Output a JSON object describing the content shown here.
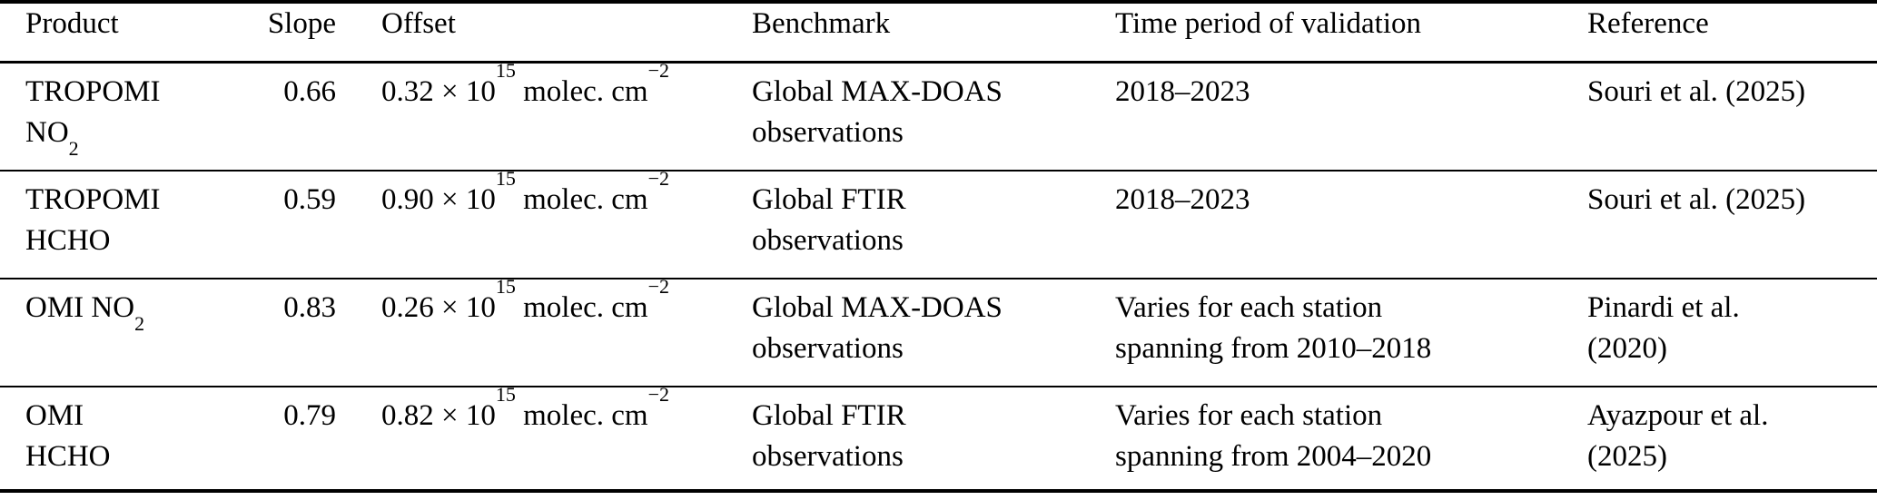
{
  "table": {
    "columns": [
      "Product",
      "Slope",
      "Offset",
      "Benchmark",
      "Time period of validation",
      "Reference"
    ],
    "rows": [
      {
        "product_line1": "TROPOMI",
        "product_line2": "NO",
        "product_line2_sub": "2",
        "slope": "0.66",
        "offset_value": "0.32 × 10",
        "offset_exponent": "15",
        "offset_unit": " molec. cm",
        "offset_unit_exponent": "−2",
        "benchmark_line1": "Global MAX-DOAS",
        "benchmark_line2": "observations",
        "time_line1": "2018–2023",
        "reference_line1": "Souri et al. (2025)"
      },
      {
        "product_line1": "TROPOMI",
        "product_line2": "HCHO",
        "slope": "0.59",
        "offset_value": "0.90 × 10",
        "offset_exponent": "15",
        "offset_unit": " molec. cm",
        "offset_unit_exponent": "−2",
        "benchmark_line1": "Global FTIR",
        "benchmark_line2": "observations",
        "time_line1": "2018–2023",
        "reference_line1": "Souri et al. (2025)"
      },
      {
        "product_line1": "OMI NO",
        "product_line1_sub": "2",
        "slope": "0.83",
        "offset_value": "0.26 × 10",
        "offset_exponent": "15",
        "offset_unit": " molec. cm",
        "offset_unit_exponent": "−2",
        "benchmark_line1": "Global MAX-DOAS",
        "benchmark_line2": "observations",
        "time_line1": "Varies for each station",
        "time_line2": "spanning from 2010–2018",
        "reference_line1": "Pinardi et al.",
        "reference_line2": "(2020)"
      },
      {
        "product_line1": "OMI",
        "product_line2": "HCHO",
        "slope": "0.79",
        "offset_value": "0.82 × 10",
        "offset_exponent": "15",
        "offset_unit": " molec. cm",
        "offset_unit_exponent": "−2",
        "benchmark_line1": "Global FTIR",
        "benchmark_line2": "observations",
        "time_line1": "Varies for each station",
        "time_line2": "spanning from 2004–2020",
        "reference_line1": "Ayazpour et al.",
        "reference_line2": "(2025)"
      }
    ]
  }
}
